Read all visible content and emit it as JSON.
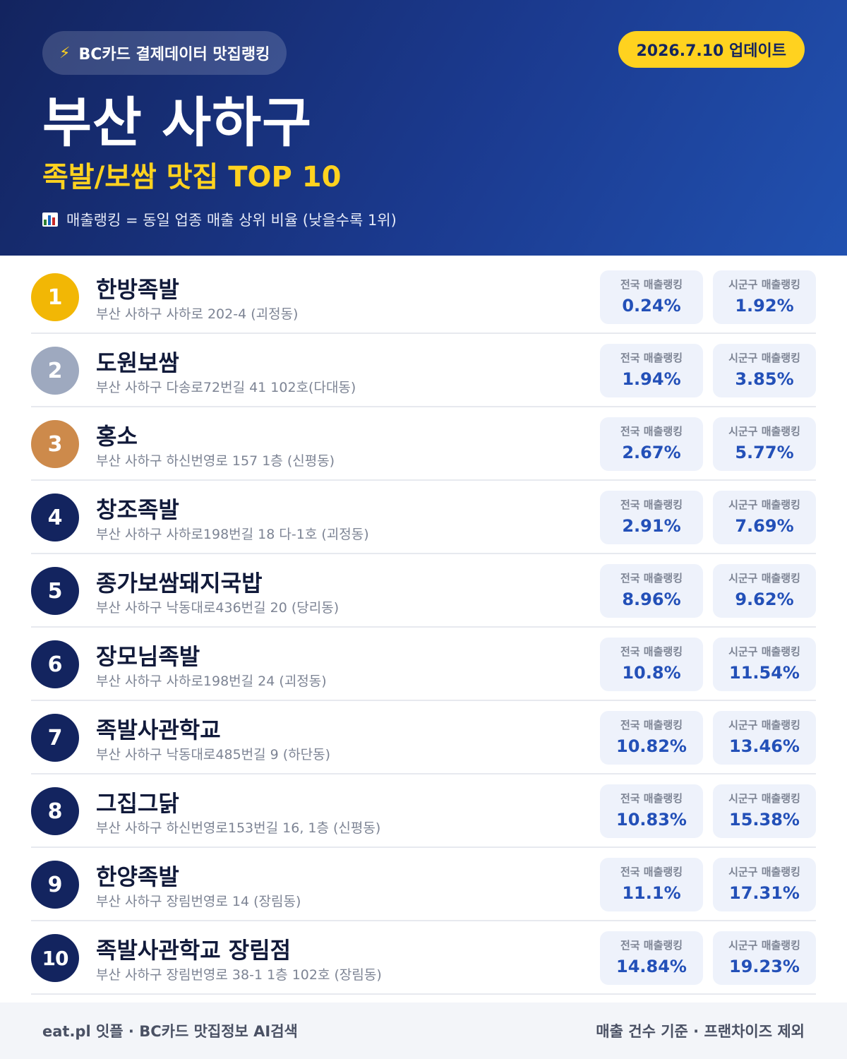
{
  "header": {
    "badge": "BC카드 결제데이터 맛집랭킹",
    "badge_icon": "lightning-icon",
    "update": "2026.7.10 업데이트",
    "title": "부산 사하구",
    "subtitle": "족발/보쌈 맛집 TOP 10",
    "note": "매출랭킹 = 동일 업종 매출 상위 비율 (낮을수록 1위)",
    "note_icon": "bar-chart-icon"
  },
  "stat_labels": {
    "national": "전국 매출랭킹",
    "district": "시군구 매출랭킹"
  },
  "colors": {
    "gold": "#f2b705",
    "silver": "#9ea9bf",
    "bronze": "#cd8a4b",
    "navy": "#13245f",
    "accent_yellow": "#ffd21f",
    "value_blue": "#2350b8"
  },
  "restaurants": [
    {
      "rank": "1",
      "name": "한방족발",
      "address": "부산 사하구 사하로 202-4 (괴정동)",
      "national": "0.24%",
      "district": "1.92%"
    },
    {
      "rank": "2",
      "name": "도원보쌈",
      "address": "부산 사하구 다송로72번길 41 102호(다대동)",
      "national": "1.94%",
      "district": "3.85%"
    },
    {
      "rank": "3",
      "name": "홍소",
      "address": "부산 사하구 하신번영로 157 1층 (신평동)",
      "national": "2.67%",
      "district": "5.77%"
    },
    {
      "rank": "4",
      "name": "창조족발",
      "address": "부산 사하구 사하로198번길 18 다-1호 (괴정동)",
      "national": "2.91%",
      "district": "7.69%"
    },
    {
      "rank": "5",
      "name": "종가보쌈돼지국밥",
      "address": "부산 사하구 낙동대로436번길 20 (당리동)",
      "national": "8.96%",
      "district": "9.62%"
    },
    {
      "rank": "6",
      "name": "장모님족발",
      "address": "부산 사하구 사하로198번길 24 (괴정동)",
      "national": "10.8%",
      "district": "11.54%"
    },
    {
      "rank": "7",
      "name": "족발사관학교",
      "address": "부산 사하구 낙동대로485번길 9 (하단동)",
      "national": "10.82%",
      "district": "13.46%"
    },
    {
      "rank": "8",
      "name": "그집그닭",
      "address": "부산 사하구 하신번영로153번길 16, 1층 (신평동)",
      "national": "10.83%",
      "district": "15.38%"
    },
    {
      "rank": "9",
      "name": "한양족발",
      "address": "부산 사하구 장림번영로 14 (장림동)",
      "national": "11.1%",
      "district": "17.31%"
    },
    {
      "rank": "10",
      "name": "족발사관학교 장림점",
      "address": "부산 사하구 장림번영로 38-1 1층 102호 (장림동)",
      "national": "14.84%",
      "district": "19.23%"
    }
  ],
  "footer": {
    "left": "eat.pl 잇플 · BC카드 맛집정보 AI검색",
    "right": "매출 건수 기준 · 프랜차이즈 제외"
  }
}
